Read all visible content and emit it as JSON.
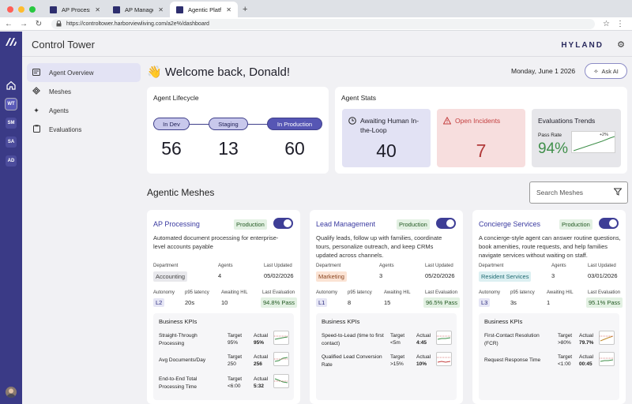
{
  "browser": {
    "tabs": [
      {
        "label": "AP Processing"
      },
      {
        "label": "AP Manager"
      },
      {
        "label": "Agentic Platform"
      }
    ],
    "url": "https://controltower.harborviewliving.com/a2e%/dashboard"
  },
  "rail": {
    "items": [
      "WT",
      "SM",
      "SA",
      "AD"
    ]
  },
  "header": {
    "title": "Control Tower",
    "brand": "HYLAND"
  },
  "sidebar": {
    "items": [
      {
        "label": "Agent Overview",
        "icon": "overview-icon"
      },
      {
        "label": "Meshes",
        "icon": "meshes-icon"
      },
      {
        "label": "Agents",
        "icon": "agents-icon"
      },
      {
        "label": "Evaluations",
        "icon": "evaluations-icon"
      }
    ]
  },
  "greeting": "Welcome back, Donald!",
  "date": "Monday, June 1 2026",
  "ask_ai": "Ask AI",
  "lifecycle": {
    "title": "Agent Lifecycle",
    "stages": [
      {
        "label": "In Dev",
        "count": "56"
      },
      {
        "label": "Staging",
        "count": "13"
      },
      {
        "label": "In Production",
        "count": "60"
      }
    ]
  },
  "stats": {
    "title": "Agent Stats",
    "hil": {
      "label": "Awaiting Human In-the-Loop",
      "value": "40"
    },
    "incidents": {
      "label": "Open Incidents",
      "value": "7"
    },
    "evals": {
      "label": "Evaluations Trends",
      "pass_label": "Pass Rate",
      "pass_value": "94%",
      "delta": "+2%"
    }
  },
  "meshes": {
    "title": "Agentic Meshes",
    "search_placeholder": "Search Meshes",
    "labels": {
      "department": "Department",
      "agents": "Agents",
      "last_updated": "Last Updated",
      "autonomy": "Autonomy",
      "latency": "p95 latency",
      "awaiting": "Awaiting HIL",
      "last_eval": "Last Evaluation",
      "kpis": "Business KPIs",
      "target": "Target",
      "actual": "Actual"
    },
    "cards": [
      {
        "title": "AP Processing",
        "status": "Production",
        "desc": "Automated document processing for enterprise-level accounts payable",
        "department": "Accounting",
        "agents": "4",
        "updated": "05/02/2026",
        "autonomy": "L2",
        "latency": "20s",
        "awaiting": "10",
        "eval": "94.8% Pass",
        "kpis": [
          {
            "name": "Straight-Through Processing",
            "target": "95%",
            "actual": "95%"
          },
          {
            "name": "Avg Documents/Day",
            "target": "250",
            "actual": "256"
          },
          {
            "name": "End-to-End Total Processing Time",
            "target": "<6:00",
            "actual": "5:32"
          }
        ]
      },
      {
        "title": "Lead Management",
        "status": "Production",
        "desc": "Qualify leads, follow up with families, coordinate tours, personalize outreach, and keep CRMs updated across channels.",
        "department": "Marketing",
        "agents": "3",
        "updated": "05/20/2026",
        "autonomy": "L1",
        "latency": "8",
        "awaiting": "15",
        "eval": "96.5% Pass",
        "kpis": [
          {
            "name": "Speed-to-Lead (time to first contact)",
            "target": "<5m",
            "actual": "4:45"
          },
          {
            "name": "Qualified Lead Conversion Rate",
            "target": ">15%",
            "actual": "10%"
          }
        ]
      },
      {
        "title": "Concierge Services",
        "status": "Production",
        "desc": "A concierge-style agent can answer routine questions, book amenities, route requests, and help families navigate services without waiting on staff.",
        "department": "Resident Services",
        "agents": "3",
        "updated": "03/01/2026",
        "autonomy": "L3",
        "latency": "3s",
        "awaiting": "1",
        "eval": "95.1% Pass",
        "kpis": [
          {
            "name": "First-Contact Resolution (FCR)",
            "target": ">80%",
            "actual": "79.7%"
          },
          {
            "name": "Request Response Time",
            "target": "<1:00",
            "actual": "00:45"
          }
        ]
      }
    ]
  }
}
